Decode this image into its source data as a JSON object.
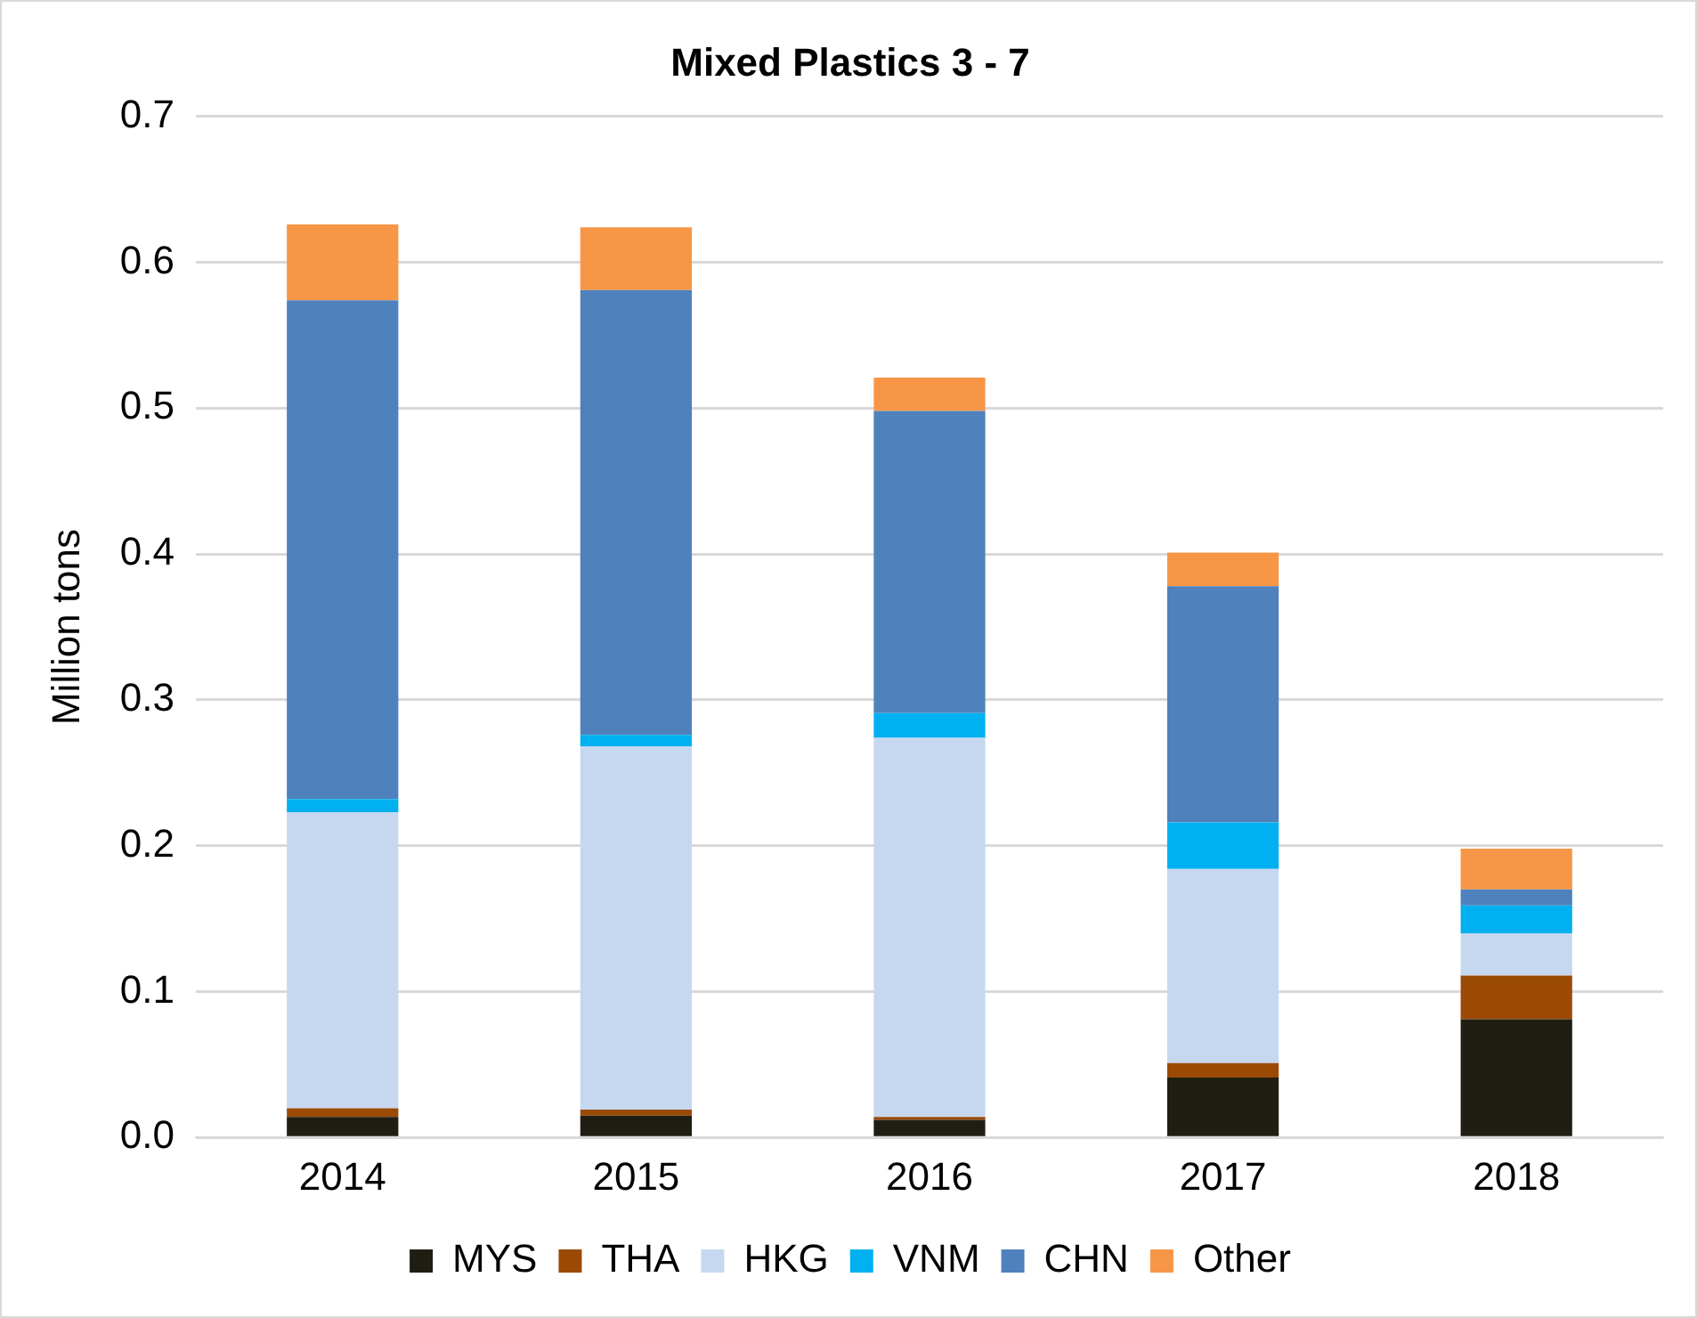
{
  "chart_data": {
    "type": "bar",
    "title": "Mixed Plastics 3 - 7",
    "ylabel": "Million tons",
    "categories": [
      "2014",
      "2015",
      "2016",
      "2017",
      "2018"
    ],
    "series": [
      {
        "name": "MYS",
        "color": "#201e13",
        "values": [
          0.014,
          0.015,
          0.012,
          0.041,
          0.081
        ]
      },
      {
        "name": "THA",
        "color": "#9b4a06",
        "values": [
          0.006,
          0.004,
          0.002,
          0.01,
          0.03
        ]
      },
      {
        "name": "HKG",
        "color": "#c6d8ef",
        "values": [
          0.203,
          0.249,
          0.26,
          0.133,
          0.029
        ]
      },
      {
        "name": "VNM",
        "color": "#00b0f0",
        "values": [
          0.009,
          0.008,
          0.017,
          0.032,
          0.019
        ]
      },
      {
        "name": "CHN",
        "color": "#4f81bd",
        "values": [
          0.342,
          0.305,
          0.207,
          0.162,
          0.011
        ]
      },
      {
        "name": "Other",
        "color": "#f79646",
        "values": [
          0.052,
          0.043,
          0.023,
          0.023,
          0.028
        ]
      }
    ],
    "stacked": true,
    "ylim": [
      0,
      0.7
    ],
    "yticks": [
      {
        "value": 0,
        "label": "0.0"
      },
      0.1,
      0.2,
      0.3,
      0.4,
      0.5,
      0.6,
      0.7
    ],
    "grid": "y",
    "legend": "bottom"
  }
}
